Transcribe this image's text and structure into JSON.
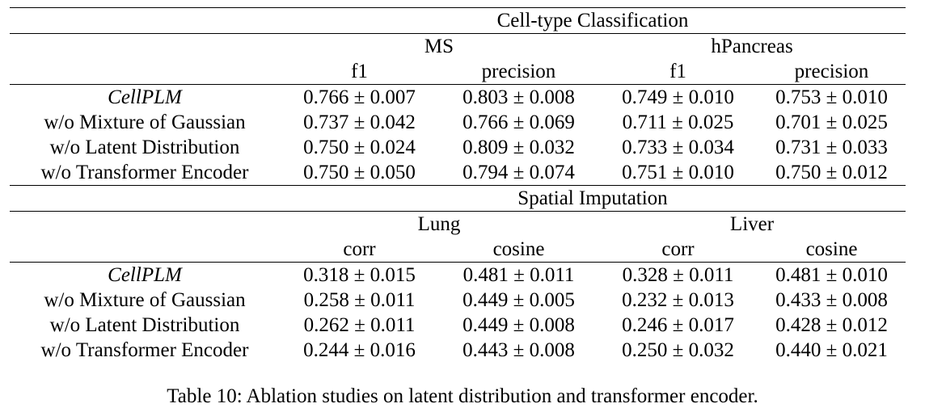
{
  "sections": [
    {
      "task": "Cell-type Classification",
      "datasets": [
        "MS",
        "hPancreas"
      ],
      "metrics": [
        "f1",
        "precision",
        "f1",
        "precision"
      ],
      "rows": [
        {
          "method": "CellPLM",
          "values": [
            "0.766 ± 0.007",
            "0.803 ± 0.008",
            "0.749 ± 0.010",
            "0.753 ± 0.010"
          ]
        },
        {
          "method": "w/o Mixture of Gaussian",
          "values": [
            "0.737 ± 0.042",
            "0.766 ± 0.069",
            "0.711 ± 0.025",
            "0.701 ± 0.025"
          ]
        },
        {
          "method": "w/o Latent Distribution",
          "values": [
            "0.750 ± 0.024",
            "0.809 ± 0.032",
            "0.733 ± 0.034",
            "0.731 ± 0.033"
          ]
        },
        {
          "method": "w/o Transformer Encoder",
          "values": [
            "0.750 ± 0.050",
            "0.794 ± 0.074",
            "0.751 ± 0.010",
            "0.750 ± 0.012"
          ]
        }
      ]
    },
    {
      "task": "Spatial Imputation",
      "datasets": [
        "Lung",
        "Liver"
      ],
      "metrics": [
        "corr",
        "cosine",
        "corr",
        "cosine"
      ],
      "rows": [
        {
          "method": "CellPLM",
          "values": [
            "0.318 ± 0.015",
            "0.481 ± 0.011",
            "0.328 ± 0.011",
            "0.481 ± 0.010"
          ]
        },
        {
          "method": "w/o Mixture of Gaussian",
          "values": [
            "0.258 ± 0.011",
            "0.449 ± 0.005",
            "0.232 ± 0.013",
            "0.433 ± 0.008"
          ]
        },
        {
          "method": "w/o Latent Distribution",
          "values": [
            "0.262 ± 0.011",
            "0.449 ± 0.008",
            "0.246 ± 0.017",
            "0.428 ± 0.012"
          ]
        },
        {
          "method": "w/o Transformer Encoder",
          "values": [
            "0.244 ± 0.016",
            "0.443 ± 0.008",
            "0.250 ± 0.032",
            "0.440 ± 0.021"
          ]
        }
      ]
    }
  ],
  "caption": "Table 10: Ablation studies on latent distribution and transformer encoder."
}
